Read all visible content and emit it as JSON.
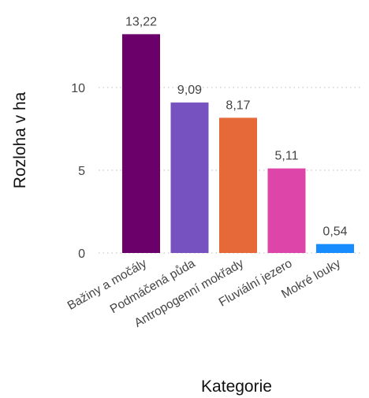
{
  "chart_data": {
    "type": "bar",
    "categories": [
      "Bažiny a močály",
      "Podmáčená půda",
      "Antropogenní mokřady",
      "Fluviální jezero",
      "Mokré louky"
    ],
    "values": [
      13.22,
      9.09,
      8.17,
      5.11,
      0.54
    ],
    "value_labels": [
      "13,22",
      "9,09",
      "8,17",
      "5,11",
      "0,54"
    ],
    "colors": [
      "#6b006b",
      "#7552bf",
      "#e6693a",
      "#dd46a8",
      "#168cff"
    ],
    "xlabel": "Kategorie",
    "ylabel": "Rozloha v ha",
    "ylim": [
      0,
      14
    ],
    "yticks": [
      0,
      5,
      10
    ],
    "grid": "horizontal dotted",
    "legend": "none"
  }
}
